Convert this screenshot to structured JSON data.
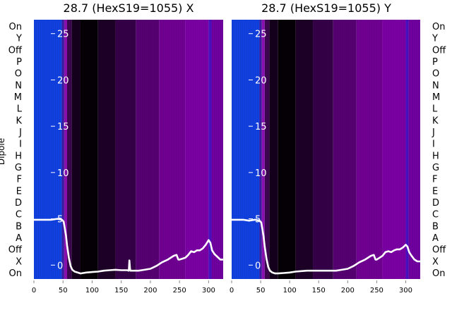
{
  "panels": [
    {
      "title": "28.7 (HexS19=1055) X"
    },
    {
      "title": "28.7 (HexS19=1055) Y"
    }
  ],
  "ylabel": "Dipole",
  "categories": [
    "On",
    "X",
    "Off",
    "A",
    "B",
    "C",
    "D",
    "E",
    "F",
    "G",
    "H",
    "I",
    "J",
    "K",
    "L",
    "M",
    "N",
    "O",
    "P",
    "Off",
    "Y",
    "On"
  ],
  "categories_top_to_bottom": [
    "On",
    "Y",
    "Off",
    "P",
    "O",
    "N",
    "M",
    "L",
    "K",
    "J",
    "I",
    "H",
    "G",
    "F",
    "E",
    "D",
    "C",
    "B",
    "A",
    "Off",
    "X",
    "On"
  ],
  "chart_data": [
    {
      "type": "heatmap",
      "title": "28.7 (HexS19=1055) X",
      "ylabel": "Dipole",
      "x_ticks": [
        0,
        50,
        100,
        150,
        200,
        250,
        300
      ],
      "xlim": [
        0,
        325
      ],
      "overlay_y_ticks": [
        0,
        5,
        10,
        15,
        20,
        25
      ],
      "overlay_ylim": [
        -1.5,
        26.5
      ],
      "colormap_bands": [
        {
          "x0": 0,
          "x1": 48,
          "color": "#1140e0"
        },
        {
          "x0": 48,
          "x1": 52,
          "color": "#3a1aa0"
        },
        {
          "x0": 52,
          "x1": 57,
          "color": "#8a10b0"
        },
        {
          "x0": 57,
          "x1": 65,
          "color": "#3c0650"
        },
        {
          "x0": 65,
          "x1": 80,
          "color": "#14001c"
        },
        {
          "x0": 80,
          "x1": 110,
          "color": "#050005"
        },
        {
          "x0": 110,
          "x1": 140,
          "color": "#1c0026"
        },
        {
          "x0": 140,
          "x1": 175,
          "color": "#350048"
        },
        {
          "x0": 175,
          "x1": 215,
          "color": "#560072"
        },
        {
          "x0": 215,
          "x1": 260,
          "color": "#6f0092"
        },
        {
          "x0": 260,
          "x1": 300,
          "color": "#7a00a4"
        },
        {
          "x0": 300,
          "x1": 305,
          "color": "#4a10c0"
        },
        {
          "x0": 305,
          "x1": 325,
          "color": "#7000a0"
        }
      ],
      "series": [
        {
          "type": "line",
          "x": [
            0,
            10,
            20,
            30,
            40,
            48,
            51,
            53,
            55,
            57,
            60,
            63,
            66,
            70,
            75,
            80,
            90,
            100,
            110,
            120,
            130,
            140,
            150,
            160,
            163,
            164,
            165,
            166,
            167,
            170,
            180,
            190,
            200,
            210,
            220,
            230,
            240,
            245,
            248,
            250,
            255,
            260,
            265,
            270,
            275,
            280,
            285,
            290,
            295,
            300,
            303,
            306,
            310,
            315,
            320,
            325
          ],
          "y": [
            4.9,
            4.9,
            4.9,
            4.9,
            5.0,
            4.9,
            4.7,
            4.0,
            3.2,
            2.1,
            0.8,
            -0.1,
            -0.5,
            -0.7,
            -0.8,
            -0.9,
            -0.8,
            -0.75,
            -0.7,
            -0.6,
            -0.55,
            -0.5,
            -0.55,
            -0.55,
            -0.6,
            0.5,
            -0.4,
            -0.6,
            -0.6,
            -0.6,
            -0.6,
            -0.5,
            -0.4,
            -0.1,
            0.3,
            0.6,
            1.0,
            1.1,
            0.6,
            0.6,
            0.7,
            0.8,
            1.1,
            1.5,
            1.4,
            1.6,
            1.6,
            1.8,
            2.2,
            2.7,
            2.4,
            1.6,
            1.2,
            0.9,
            0.6,
            0.6
          ],
          "color": "#ffffff"
        }
      ]
    },
    {
      "type": "heatmap",
      "title": "28.7 (HexS19=1055) Y",
      "x_ticks": [
        0,
        50,
        100,
        150,
        200,
        250,
        300
      ],
      "xlim": [
        0,
        325
      ],
      "overlay_y_ticks": [
        0,
        5,
        10,
        15,
        20,
        25
      ],
      "overlay_ylim": [
        -1.5,
        26.5
      ],
      "colormap_bands": [
        {
          "x0": 0,
          "x1": 48,
          "color": "#1140e0"
        },
        {
          "x0": 48,
          "x1": 52,
          "color": "#3a1aa0"
        },
        {
          "x0": 52,
          "x1": 57,
          "color": "#8a10b0"
        },
        {
          "x0": 57,
          "x1": 65,
          "color": "#3c0650"
        },
        {
          "x0": 65,
          "x1": 80,
          "color": "#14001c"
        },
        {
          "x0": 80,
          "x1": 110,
          "color": "#050005"
        },
        {
          "x0": 110,
          "x1": 140,
          "color": "#1c0026"
        },
        {
          "x0": 140,
          "x1": 175,
          "color": "#350048"
        },
        {
          "x0": 175,
          "x1": 215,
          "color": "#560072"
        },
        {
          "x0": 215,
          "x1": 260,
          "color": "#6f0092"
        },
        {
          "x0": 260,
          "x1": 300,
          "color": "#7a00a4"
        },
        {
          "x0": 300,
          "x1": 305,
          "color": "#4a10c0"
        },
        {
          "x0": 305,
          "x1": 325,
          "color": "#7000a0"
        }
      ],
      "series": [
        {
          "type": "line",
          "x": [
            0,
            10,
            20,
            30,
            40,
            48,
            51,
            53,
            55,
            57,
            60,
            63,
            66,
            70,
            75,
            80,
            90,
            100,
            110,
            120,
            130,
            140,
            150,
            160,
            170,
            180,
            190,
            200,
            210,
            220,
            230,
            240,
            245,
            248,
            250,
            255,
            260,
            265,
            270,
            275,
            280,
            285,
            290,
            295,
            300,
            303,
            306,
            310,
            315,
            320,
            325
          ],
          "y": [
            4.9,
            4.9,
            4.9,
            4.8,
            4.9,
            4.8,
            4.6,
            3.9,
            3.1,
            2.0,
            0.7,
            -0.2,
            -0.6,
            -0.8,
            -0.9,
            -0.9,
            -0.85,
            -0.8,
            -0.7,
            -0.65,
            -0.6,
            -0.6,
            -0.6,
            -0.6,
            -0.6,
            -0.6,
            -0.5,
            -0.4,
            -0.1,
            0.3,
            0.6,
            1.0,
            1.1,
            0.6,
            0.6,
            0.8,
            1.0,
            1.4,
            1.5,
            1.4,
            1.6,
            1.7,
            1.7,
            1.9,
            2.2,
            2.0,
            1.4,
            1.0,
            0.6,
            0.4,
            0.4
          ],
          "color": "#ffffff"
        }
      ]
    }
  ]
}
